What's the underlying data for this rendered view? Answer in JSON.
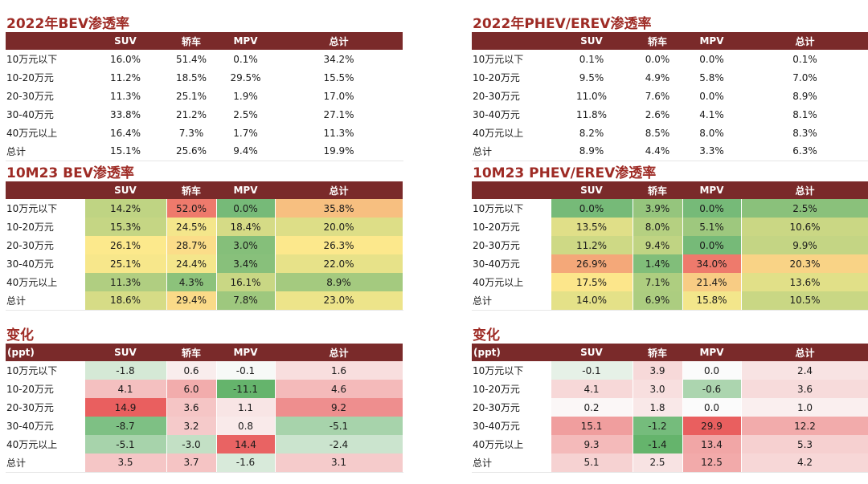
{
  "columns": [
    "SUV",
    "轿车",
    "MPV",
    "总计"
  ],
  "row_labels": [
    "10万元以下",
    "10-20万元",
    "20-30万元",
    "30-40万元",
    "40万元以上",
    "总计"
  ],
  "chart_data": [
    {
      "type": "table",
      "id": "bev2022",
      "title": "2022年BEV渗透率",
      "unit": "",
      "rows": [
        [
          "16.0%",
          "51.4%",
          "0.1%",
          "34.2%"
        ],
        [
          "11.2%",
          "18.5%",
          "29.5%",
          "15.5%"
        ],
        [
          "11.3%",
          "25.1%",
          "1.9%",
          "17.0%"
        ],
        [
          "33.8%",
          "21.2%",
          "2.5%",
          "27.1%"
        ],
        [
          "16.4%",
          "7.3%",
          "1.7%",
          "11.3%"
        ],
        [
          "15.1%",
          "25.6%",
          "9.4%",
          "19.9%"
        ]
      ]
    },
    {
      "type": "table",
      "id": "phev2022",
      "title": "2022年PHEV/EREV渗透率",
      "unit": "",
      "rows": [
        [
          "0.1%",
          "0.0%",
          "0.0%",
          "0.1%"
        ],
        [
          "9.5%",
          "4.9%",
          "5.8%",
          "7.0%"
        ],
        [
          "11.0%",
          "7.6%",
          "0.0%",
          "8.9%"
        ],
        [
          "11.8%",
          "2.6%",
          "4.1%",
          "8.1%"
        ],
        [
          "8.2%",
          "8.5%",
          "8.0%",
          "8.3%"
        ],
        [
          "8.9%",
          "4.4%",
          "3.3%",
          "6.3%"
        ]
      ]
    },
    {
      "type": "heatmap",
      "id": "bev10m23",
      "title": "10M23 BEV渗透率",
      "unit": "",
      "rows": [
        [
          "14.2%",
          "52.0%",
          "0.0%",
          "35.8%"
        ],
        [
          "15.3%",
          "24.5%",
          "18.4%",
          "20.0%"
        ],
        [
          "26.1%",
          "28.7%",
          "3.0%",
          "26.3%"
        ],
        [
          "25.1%",
          "24.4%",
          "3.4%",
          "22.0%"
        ],
        [
          "11.3%",
          "4.3%",
          "16.1%",
          "8.9%"
        ],
        [
          "18.6%",
          "29.4%",
          "7.8%",
          "23.0%"
        ]
      ]
    },
    {
      "type": "heatmap",
      "id": "phev10m23",
      "title": "10M23 PHEV/EREV渗透率",
      "unit": "",
      "rows": [
        [
          "0.0%",
          "3.9%",
          "0.0%",
          "2.5%"
        ],
        [
          "13.5%",
          "8.0%",
          "5.1%",
          "10.6%"
        ],
        [
          "11.2%",
          "9.4%",
          "0.0%",
          "9.9%"
        ],
        [
          "26.9%",
          "1.4%",
          "34.0%",
          "20.3%"
        ],
        [
          "17.5%",
          "7.1%",
          "21.4%",
          "13.6%"
        ],
        [
          "14.0%",
          "6.9%",
          "15.8%",
          "10.5%"
        ]
      ]
    },
    {
      "type": "heatmap",
      "id": "bevchange",
      "title": "变化",
      "unit": "(ppt)",
      "rows": [
        [
          "-1.8",
          "0.6",
          "-0.1",
          "1.6"
        ],
        [
          "4.1",
          "6.0",
          "-11.1",
          "4.6"
        ],
        [
          "14.9",
          "3.6",
          "1.1",
          "9.2"
        ],
        [
          "-8.7",
          "3.2",
          "0.8",
          "-5.1"
        ],
        [
          "-5.1",
          "-3.0",
          "14.4",
          "-2.4"
        ],
        [
          "3.5",
          "3.7",
          "-1.6",
          "3.1"
        ]
      ]
    },
    {
      "type": "heatmap",
      "id": "phevchange",
      "title": "变化",
      "unit": "(ppt)",
      "rows": [
        [
          "-0.1",
          "3.9",
          "0.0",
          "2.4"
        ],
        [
          "4.1",
          "3.0",
          "-0.6",
          "3.6"
        ],
        [
          "0.2",
          "1.8",
          "0.0",
          "1.0"
        ],
        [
          "15.1",
          "-1.2",
          "29.9",
          "12.2"
        ],
        [
          "9.3",
          "-1.4",
          "13.4",
          "5.3"
        ],
        [
          "5.1",
          "2.5",
          "12.5",
          "4.2"
        ]
      ]
    }
  ]
}
